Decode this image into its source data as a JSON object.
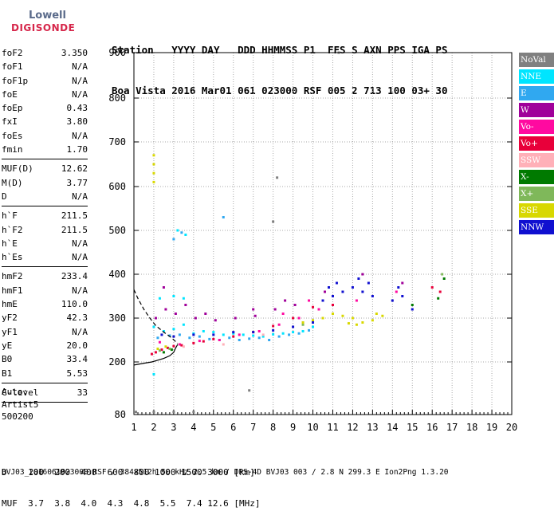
{
  "logo": {
    "line1": "Lowell",
    "line2": "DIGISONDE"
  },
  "header": {
    "row1": [
      "Station",
      "YYYY DAY",
      "DDD HHMMSS P1",
      "FFS S AXN PPS IGA PS"
    ],
    "row2": [
      "Boa Vista",
      "2016 Mar01",
      "061 023000 RSF",
      "005 2 713 100 03+ 30"
    ]
  },
  "params": [
    {
      "label": "foF2",
      "value": "3.350"
    },
    {
      "label": "foF1",
      "value": "N/A"
    },
    {
      "label": "foF1p",
      "value": "N/A"
    },
    {
      "label": "foE",
      "value": "N/A"
    },
    {
      "label": "foEp",
      "value": "0.43"
    },
    {
      "label": "fxI",
      "value": "3.80"
    },
    {
      "label": "foEs",
      "value": "N/A"
    },
    {
      "label": "fmin",
      "value": "1.70"
    },
    {
      "sep": true
    },
    {
      "label": "MUF(D)",
      "value": "12.62"
    },
    {
      "label": "M(D)",
      "value": "3.77"
    },
    {
      "label": "D",
      "value": "N/A"
    },
    {
      "sep": true
    },
    {
      "label": "h`F",
      "value": "211.5"
    },
    {
      "label": "h`F2",
      "value": "211.5"
    },
    {
      "label": "h`E",
      "value": "N/A"
    },
    {
      "label": "h`Es",
      "value": "N/A"
    },
    {
      "sep": true
    },
    {
      "label": "hmF2",
      "value": "233.4"
    },
    {
      "label": "hmF1",
      "value": "N/A"
    },
    {
      "label": "hmE",
      "value": "110.0"
    },
    {
      "label": "yF2",
      "value": "42.3"
    },
    {
      "label": "yF1",
      "value": "N/A"
    },
    {
      "label": "yE",
      "value": "20.0"
    },
    {
      "label": "B0",
      "value": "33.4"
    },
    {
      "label": "B1",
      "value": "5.53"
    },
    {
      "sep": true
    },
    {
      "label": "C-level",
      "value": "33"
    },
    {
      "sep": true
    }
  ],
  "auto": {
    "line1": "Auto:",
    "line2": "Artist5",
    "line3": "500200"
  },
  "legend": [
    {
      "label": "NoVal",
      "color": "#808080"
    },
    {
      "label": "NNE",
      "color": "#00e5ff"
    },
    {
      "label": "E",
      "color": "#30a8f0"
    },
    {
      "label": "W",
      "color": "#a0009a"
    },
    {
      "label": "Vo-",
      "color": "#ff0aa0"
    },
    {
      "label": "Vo+",
      "color": "#e8003a"
    },
    {
      "label": "SSW",
      "color": "#ffb0b8"
    },
    {
      "label": "X-",
      "color": "#007a00"
    },
    {
      "label": "X+",
      "color": "#7fb85a"
    },
    {
      "label": "SSE",
      "color": "#d8d800"
    },
    {
      "label": "NNW",
      "color": "#1010d0"
    }
  ],
  "bottom": {
    "row1": "D    100  200  400  600  800 1000 1500 3000 [km]",
    "row2": "MUF  3.7  3.8  4.0  4.3  4.8  5.5  7.4 12.6 [MHz]",
    "footer": "BVJ03_2016061023000.RSF / 384x512h 50 kHz 2.5 km / DPS-4D BVJ03 003 / 2.8 N 299.3 E Ion2Png 1.3.20"
  },
  "chart_data": {
    "type": "scatter",
    "title": "",
    "xlabel": "",
    "ylabel": "",
    "xlim": [
      1,
      20
    ],
    "ylim": [
      80,
      900
    ],
    "xticks": [
      1,
      2,
      3,
      4,
      5,
      6,
      7,
      8,
      9,
      10,
      11,
      12,
      13,
      14,
      15,
      16,
      17,
      18,
      19,
      20
    ],
    "yticks": [
      80,
      200,
      300,
      400,
      500,
      600,
      700,
      800,
      900
    ],
    "grid": "dotted",
    "legend_position": "right",
    "series": [
      {
        "name": "NNE",
        "color": "#00e5ff",
        "points": [
          [
            2.0,
            280
          ],
          [
            2.5,
            270
          ],
          [
            3.0,
            275
          ],
          [
            3.5,
            285
          ],
          [
            4.0,
            265
          ],
          [
            4.5,
            270
          ],
          [
            5.0,
            268
          ],
          [
            5.5,
            262
          ],
          [
            6.0,
            265
          ],
          [
            6.5,
            262
          ],
          [
            7.0,
            260
          ],
          [
            7.5,
            258
          ],
          [
            8.0,
            263
          ],
          [
            8.5,
            265
          ],
          [
            9.0,
            268
          ],
          [
            9.5,
            270
          ],
          [
            10.0,
            280
          ],
          [
            2.3,
            345
          ],
          [
            3.0,
            350
          ],
          [
            3.5,
            345
          ],
          [
            3.2,
            500
          ],
          [
            3.6,
            490
          ],
          [
            2.0,
            172
          ]
        ]
      },
      {
        "name": "E",
        "color": "#30a8f0",
        "points": [
          [
            2.2,
            255
          ],
          [
            2.8,
            260
          ],
          [
            3.3,
            262
          ],
          [
            3.8,
            255
          ],
          [
            4.3,
            258
          ],
          [
            4.8,
            252
          ],
          [
            5.3,
            250
          ],
          [
            5.8,
            255
          ],
          [
            6.3,
            250
          ],
          [
            6.8,
            253
          ],
          [
            7.3,
            255
          ],
          [
            7.8,
            250
          ],
          [
            8.3,
            258
          ],
          [
            8.8,
            262
          ],
          [
            9.3,
            265
          ],
          [
            9.8,
            272
          ],
          [
            3.0,
            480
          ],
          [
            3.4,
            495
          ],
          [
            5.5,
            530
          ]
        ]
      },
      {
        "name": "W",
        "color": "#a0009a",
        "points": [
          [
            2.1,
            300
          ],
          [
            2.6,
            320
          ],
          [
            3.1,
            310
          ],
          [
            3.6,
            330
          ],
          [
            4.1,
            300
          ],
          [
            4.6,
            310
          ],
          [
            5.1,
            295
          ],
          [
            6.1,
            300
          ],
          [
            7.1,
            305
          ],
          [
            8.1,
            320
          ],
          [
            8.6,
            340
          ],
          [
            9.1,
            330
          ],
          [
            10.6,
            360
          ],
          [
            12.5,
            400
          ],
          [
            14.5,
            380
          ],
          [
            2.5,
            370
          ],
          [
            7.0,
            320
          ]
        ]
      },
      {
        "name": "Vo-",
        "color": "#ff0aa0",
        "points": [
          [
            2.3,
            245
          ],
          [
            3.3,
            240
          ],
          [
            4.3,
            248
          ],
          [
            5.3,
            250
          ],
          [
            6.3,
            262
          ],
          [
            7.3,
            270
          ],
          [
            8.3,
            285
          ],
          [
            9.3,
            300
          ],
          [
            10.3,
            320
          ],
          [
            11.0,
            330
          ],
          [
            12.2,
            340
          ],
          [
            14.2,
            360
          ],
          [
            8.5,
            310
          ],
          [
            9.8,
            340
          ]
        ]
      },
      {
        "name": "Vo+",
        "color": "#e8003a",
        "points": [
          [
            1.9,
            218
          ],
          [
            2.1,
            222
          ],
          [
            2.4,
            228
          ],
          [
            2.7,
            232
          ],
          [
            3.0,
            236
          ],
          [
            3.4,
            238
          ],
          [
            4.0,
            243
          ],
          [
            4.5,
            247
          ],
          [
            5.0,
            252
          ],
          [
            6.0,
            258
          ],
          [
            7.0,
            268
          ],
          [
            8.0,
            282
          ],
          [
            9.0,
            300
          ],
          [
            10.0,
            325
          ],
          [
            10.5,
            340
          ],
          [
            11.0,
            330
          ],
          [
            16.0,
            370
          ],
          [
            16.4,
            360
          ]
        ]
      },
      {
        "name": "SSW",
        "color": "#ffb0b8",
        "points": [
          [
            3.5,
            235
          ],
          [
            5.5,
            240
          ],
          [
            7.5,
            262
          ],
          [
            9.5,
            290
          ]
        ]
      },
      {
        "name": "X-",
        "color": "#007a00",
        "points": [
          [
            2.5,
            222
          ],
          [
            2.9,
            228
          ],
          [
            16.3,
            345
          ],
          [
            16.6,
            390
          ],
          [
            15.0,
            330
          ]
        ]
      },
      {
        "name": "X+",
        "color": "#7fb85a",
        "points": [
          [
            2.3,
            226
          ],
          [
            2.8,
            230
          ],
          [
            9.5,
            285
          ],
          [
            10.5,
            300
          ],
          [
            16.5,
            400
          ]
        ]
      },
      {
        "name": "SSE",
        "color": "#d8d800",
        "points": [
          [
            2.2,
            230
          ],
          [
            2.6,
            235
          ],
          [
            2.0,
            650
          ],
          [
            2.0,
            630
          ],
          [
            2.0,
            610
          ],
          [
            2.0,
            670
          ],
          [
            9.5,
            290
          ],
          [
            10.0,
            295
          ],
          [
            10.5,
            300
          ],
          [
            11.0,
            310
          ],
          [
            11.5,
            305
          ],
          [
            12.0,
            300
          ],
          [
            12.5,
            290
          ],
          [
            13.0,
            295
          ],
          [
            13.5,
            305
          ],
          [
            12.2,
            285
          ],
          [
            11.8,
            288
          ],
          [
            13.2,
            310
          ]
        ]
      },
      {
        "name": "NNW",
        "color": "#1010d0",
        "points": [
          [
            2.4,
            262
          ],
          [
            3.0,
            258
          ],
          [
            4.0,
            262
          ],
          [
            5.0,
            262
          ],
          [
            6.0,
            268
          ],
          [
            7.0,
            268
          ],
          [
            8.0,
            272
          ],
          [
            9.0,
            280
          ],
          [
            10.0,
            290
          ],
          [
            10.5,
            340
          ],
          [
            11.0,
            350
          ],
          [
            11.5,
            360
          ],
          [
            12.0,
            370
          ],
          [
            12.5,
            360
          ],
          [
            13.0,
            350
          ],
          [
            14.0,
            340
          ],
          [
            14.5,
            350
          ],
          [
            15.0,
            320
          ],
          [
            12.3,
            390
          ],
          [
            12.8,
            380
          ],
          [
            14.3,
            370
          ],
          [
            11.2,
            380
          ],
          [
            10.8,
            370
          ]
        ]
      },
      {
        "name": "NoVal",
        "color": "#808080",
        "points": [
          [
            6.8,
            135
          ],
          [
            8.2,
            620
          ],
          [
            8.0,
            520
          ],
          [
            1.1,
            86
          ],
          [
            2.0,
            86
          ],
          [
            3.0,
            86
          ],
          [
            4.0,
            86
          ],
          [
            11.3,
            900
          ]
        ]
      }
    ],
    "curves": [
      {
        "name": "profile",
        "color": "#000000",
        "style": "solid",
        "points": [
          [
            1.0,
            193
          ],
          [
            1.5,
            197
          ],
          [
            1.9,
            200
          ],
          [
            2.2,
            204
          ],
          [
            2.5,
            208
          ],
          [
            2.8,
            214
          ],
          [
            3.0,
            222
          ],
          [
            3.1,
            232
          ],
          [
            3.2,
            240
          ]
        ]
      },
      {
        "name": "profile-extrapolated",
        "color": "#000000",
        "style": "dashed",
        "points": [
          [
            1.0,
            365
          ],
          [
            1.2,
            345
          ],
          [
            1.5,
            320
          ],
          [
            1.8,
            300
          ],
          [
            2.1,
            283
          ],
          [
            2.5,
            268
          ],
          [
            2.9,
            255
          ],
          [
            3.2,
            242
          ]
        ]
      }
    ]
  }
}
